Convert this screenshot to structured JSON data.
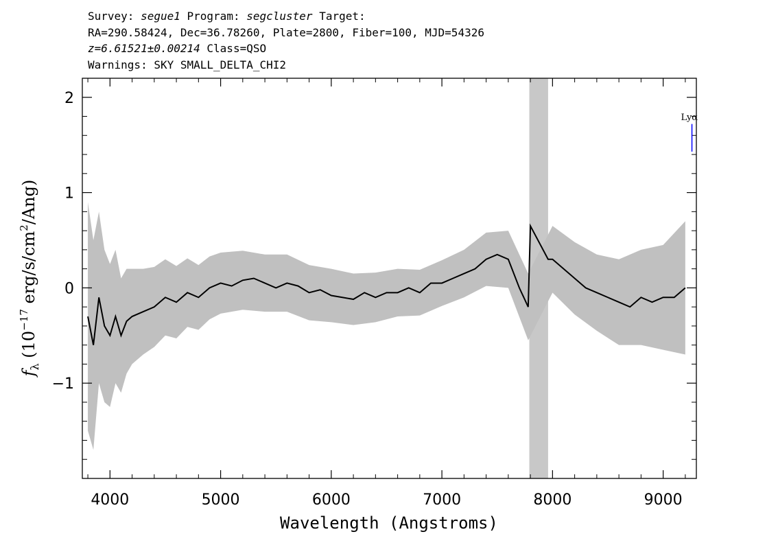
{
  "header": {
    "survey_label": "Survey:",
    "survey": "segue1",
    "program_label": "Program:",
    "program": "segcluster",
    "target_label": "Target:",
    "line2": "RA=290.58424, Dec=36.78260, Plate=2800, Fiber=100, MJD=54326",
    "redshift": "z=6.61521±0.00214",
    "class_text": "Class=QSO",
    "warnings": "Warnings: SKY SMALL_DELTA_CHI2"
  },
  "chart_data": {
    "type": "line",
    "xlabel": "Wavelength (Angstroms)",
    "ylabel": "f_λ (10^-17 erg/s/cm²/Ang)",
    "xlim": [
      3750,
      9300
    ],
    "ylim": [
      -2.0,
      2.2
    ],
    "xticks": [
      4000,
      5000,
      6000,
      7000,
      8000,
      9000
    ],
    "xtick_labels": [
      "4000",
      "5000",
      "6000",
      "7000",
      "8000",
      "9000"
    ],
    "yticks": [
      -1,
      0,
      1,
      2
    ],
    "ytick_labels": [
      "−1",
      "0",
      "1",
      "2"
    ],
    "masked_band": [
      7790,
      7960
    ],
    "line_marker": {
      "label": "Lyα",
      "wavelength": 9260,
      "color": "#0000ff"
    },
    "series": [
      {
        "color": "#000000",
        "x": [
          3800,
          3850,
          3900,
          3950,
          4000,
          4050,
          4100,
          4150,
          4200,
          4300,
          4400,
          4500,
          4600,
          4700,
          4800,
          4900,
          5000,
          5100,
          5200,
          5300,
          5400,
          5500,
          5600,
          5700,
          5800,
          5900,
          6000,
          6100,
          6200,
          6300,
          6400,
          6500,
          6600,
          6700,
          6800,
          6900,
          7000,
          7100,
          7200,
          7300,
          7400,
          7500,
          7600,
          7700,
          7780,
          7800,
          7960,
          8000,
          8100,
          8200,
          8300,
          8400,
          8500,
          8600,
          8700,
          8800,
          8900,
          9000,
          9100,
          9200
        ],
        "y": [
          -0.3,
          -0.6,
          -0.1,
          -0.4,
          -0.5,
          -0.3,
          -0.5,
          -0.35,
          -0.3,
          -0.25,
          -0.2,
          -0.1,
          -0.15,
          -0.05,
          -0.1,
          0.0,
          0.05,
          0.02,
          0.08,
          0.1,
          0.05,
          0.0,
          0.05,
          0.02,
          -0.05,
          -0.02,
          -0.08,
          -0.1,
          -0.12,
          -0.05,
          -0.1,
          -0.05,
          -0.05,
          0.0,
          -0.05,
          0.05,
          0.05,
          0.1,
          0.15,
          0.2,
          0.3,
          0.35,
          0.3,
          0.0,
          -0.2,
          0.65,
          0.3,
          0.3,
          0.2,
          0.1,
          0.0,
          -0.05,
          -0.1,
          -0.15,
          -0.2,
          -0.1,
          -0.15,
          -0.1,
          -0.1,
          0.0
        ]
      }
    ],
    "error_band": {
      "color": "#c0c0c0",
      "x": [
        3800,
        3850,
        3900,
        3950,
        4000,
        4050,
        4100,
        4150,
        4200,
        4300,
        4400,
        4500,
        4600,
        4700,
        4800,
        4900,
        5000,
        5200,
        5400,
        5600,
        5800,
        6000,
        6200,
        6400,
        6600,
        6800,
        7000,
        7200,
        7400,
        7600,
        7780,
        8000,
        8200,
        8400,
        8600,
        8800,
        9000,
        9200
      ],
      "half_width": [
        1.2,
        1.1,
        0.9,
        0.8,
        0.75,
        0.7,
        0.6,
        0.55,
        0.5,
        0.45,
        0.42,
        0.4,
        0.38,
        0.36,
        0.34,
        0.33,
        0.32,
        0.31,
        0.3,
        0.3,
        0.29,
        0.28,
        0.27,
        0.26,
        0.25,
        0.24,
        0.24,
        0.25,
        0.28,
        0.3,
        0.35,
        0.35,
        0.38,
        0.4,
        0.45,
        0.5,
        0.55,
        0.7
      ]
    }
  }
}
